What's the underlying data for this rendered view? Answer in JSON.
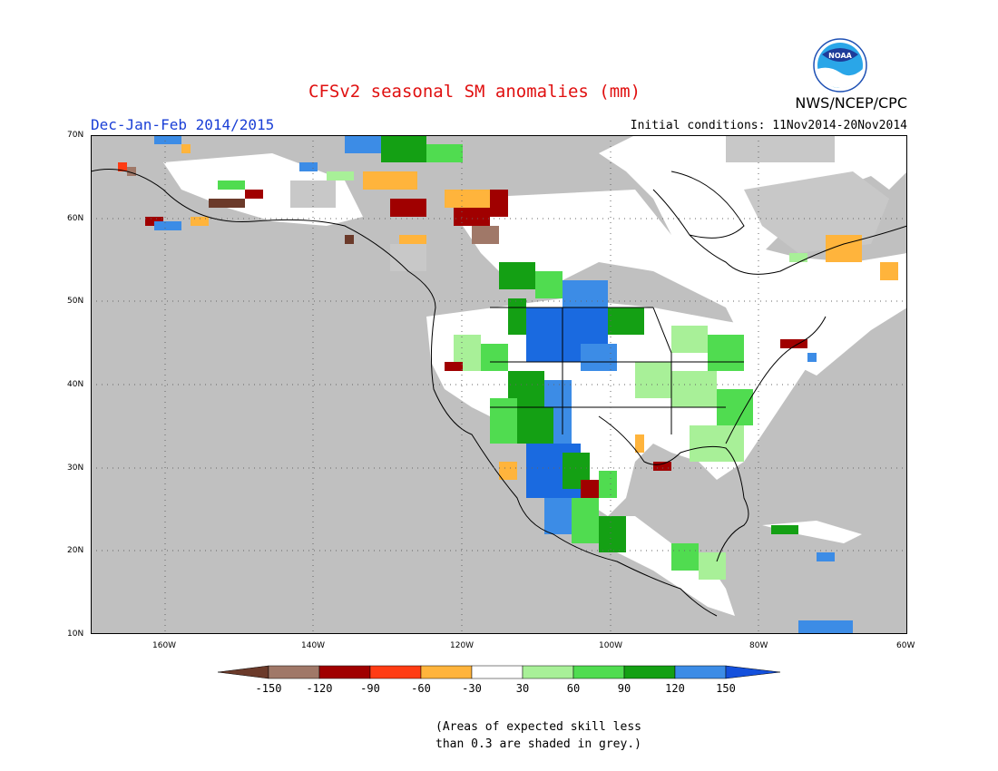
{
  "header": {
    "title": "CFSv2 seasonal SM anomalies (mm)",
    "season": "Dec-Jan-Feb 2014/2015",
    "initial_conditions": "Initial conditions: 11Nov2014-20Nov2014",
    "agency": "NWS/NCEP/CPC",
    "logo_text": "NOAA"
  },
  "map": {
    "lat_labels": [
      "70N",
      "60N",
      "50N",
      "40N",
      "30N",
      "20N",
      "10N"
    ],
    "lon_labels": [
      "160W",
      "140W",
      "120W",
      "100W",
      "80W",
      "60W"
    ],
    "lat_range": [
      10,
      70
    ],
    "lon_range": [
      -170,
      -60
    ],
    "grid": true,
    "colors": {
      "ocean": "#c0c0c0",
      "land_no_skill": "#c0c0c0",
      "land_neutral": "#ffffff"
    }
  },
  "legend": {
    "labels": [
      "-150",
      "-120",
      "-90",
      "-60",
      "-30",
      "30",
      "60",
      "90",
      "120",
      "150"
    ],
    "colors": [
      "#6b3a2a",
      "#a07868",
      "#a00000",
      "#ff3c14",
      "#ffb43c",
      "#ffffff",
      "#a8f098",
      "#50dc50",
      "#14a014",
      "#3c8ce6",
      "#1450dc"
    ]
  },
  "note": {
    "line1": "(Areas of expected skill less",
    "line2": "than 0.3 are shaded in grey.)"
  }
}
